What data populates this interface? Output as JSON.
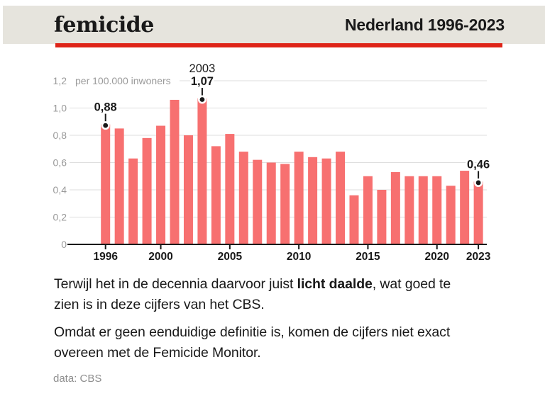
{
  "header": {
    "brand": "femicide",
    "title": "Nederland 1996-2023"
  },
  "colors": {
    "header_bg": "#e6e4dd",
    "accent_red": "#de2418",
    "bar": "#f77070",
    "grid": "#dedede",
    "axis": "#191919",
    "muted_label": "#9a9a9a",
    "text": "#191919",
    "source_gray": "#8e8e8e"
  },
  "chart_data": {
    "type": "bar",
    "title": "",
    "ylabel": "per 100.000 inwoners",
    "xlabel": "",
    "grid": true,
    "legend": "none",
    "ylim": [
      0,
      1.2
    ],
    "x": [
      1996,
      1997,
      1998,
      1999,
      2000,
      2001,
      2002,
      2003,
      2004,
      2005,
      2006,
      2007,
      2008,
      2009,
      2010,
      2011,
      2012,
      2013,
      2014,
      2015,
      2016,
      2017,
      2018,
      2019,
      2020,
      2021,
      2022,
      2023
    ],
    "values": [
      0.88,
      0.85,
      0.63,
      0.78,
      0.87,
      1.06,
      0.8,
      1.07,
      0.72,
      0.81,
      0.68,
      0.62,
      0.6,
      0.59,
      0.68,
      0.64,
      0.63,
      0.68,
      0.36,
      0.5,
      0.4,
      0.53,
      0.5,
      0.5,
      0.5,
      0.43,
      0.54,
      0.46
    ],
    "yticks": [
      {
        "v": 0,
        "label": "0"
      },
      {
        "v": 0.2,
        "label": "0,2"
      },
      {
        "v": 0.4,
        "label": "0,4"
      },
      {
        "v": 0.6,
        "label": "0,6"
      },
      {
        "v": 0.8,
        "label": "0,8"
      },
      {
        "v": 1.0,
        "label": "1,0"
      },
      {
        "v": 1.2,
        "label": "1,2"
      }
    ],
    "xticks": [
      1996,
      2000,
      2005,
      2010,
      2015,
      2020,
      2023
    ],
    "annotations": [
      {
        "year": 1996,
        "label": "0,88"
      },
      {
        "year": 2003,
        "label": "1,07",
        "year_label": "2003"
      },
      {
        "year": 2023,
        "label": "0,46"
      }
    ]
  },
  "body": {
    "p1_pre": "Terwijl het in de decennia daarvoor juist ",
    "p1_bold": "licht daalde",
    "p1_post": ", wat goed te\nzien is in deze cijfers van het CBS.",
    "p2": "Omdat er geen eenduidige definitie is, komen de cijfers niet exact\novereen met de Femicide Monitor."
  },
  "footer": {
    "source": "data: CBS"
  }
}
